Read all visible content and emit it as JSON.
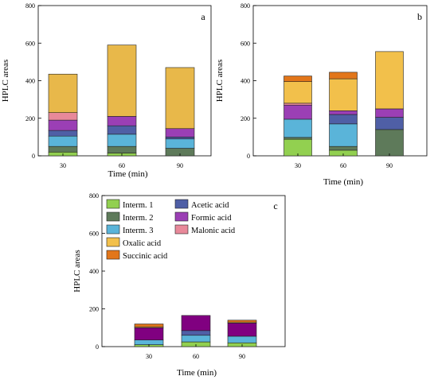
{
  "figure": {
    "legend": [
      {
        "label": "Interm. 1",
        "color": "#92d050"
      },
      {
        "label": "Interm. 2",
        "color": "#5e7a5a"
      },
      {
        "label": "Interm. 3",
        "color": "#5ab4d9"
      },
      {
        "label": "Oxalic acid",
        "color": "#f2c04b"
      },
      {
        "label": "Succinic acid",
        "color": "#e2761a"
      },
      {
        "label": "Acetic acid",
        "color": "#4f5fa6"
      },
      {
        "label": "Formic acid",
        "color": "#9b3fb5"
      },
      {
        "label": "Malonic acid",
        "color": "#e8899a"
      }
    ]
  },
  "chart_data": [
    {
      "type": "bar",
      "stacked": true,
      "panel_label": "a",
      "categories": [
        "30",
        "60",
        "90"
      ],
      "xlabel": "Time (min)",
      "ylabel": "HPLC areas",
      "ylim": [
        0,
        800
      ],
      "yticks": [
        0,
        200,
        400,
        600,
        800
      ],
      "grid": false,
      "series": [
        {
          "name": "Interm. 1",
          "color": "#92d050",
          "values": [
            20,
            15,
            0
          ]
        },
        {
          "name": "Interm. 2",
          "color": "#5e7a5a",
          "values": [
            30,
            35,
            40
          ]
        },
        {
          "name": "Interm. 3",
          "color": "#5ab4d9",
          "values": [
            55,
            65,
            50
          ]
        },
        {
          "name": "Acetic acid",
          "color": "#4f5fa6",
          "values": [
            30,
            45,
            10
          ]
        },
        {
          "name": "Formic acid",
          "color": "#9b3fb5",
          "values": [
            55,
            50,
            45
          ]
        },
        {
          "name": "Malonic acid",
          "color": "#e8899a",
          "values": [
            40,
            0,
            0
          ]
        },
        {
          "name": "Oxalic acid",
          "color": "#e8b84a",
          "values": [
            205,
            380,
            325
          ]
        }
      ]
    },
    {
      "type": "bar",
      "stacked": true,
      "panel_label": "b",
      "categories": [
        "30",
        "60",
        "90"
      ],
      "xlabel": "Time (min)",
      "ylabel": "HPLC areas",
      "ylim": [
        0,
        800
      ],
      "yticks": [
        0,
        200,
        400,
        600,
        800
      ],
      "grid": false,
      "series": [
        {
          "name": "Interm. 1",
          "color": "#92d050",
          "values": [
            88,
            30,
            0
          ]
        },
        {
          "name": "Interm. 2",
          "color": "#5e7a5a",
          "values": [
            10,
            20,
            140
          ]
        },
        {
          "name": "Interm. 3",
          "color": "#5ab4d9",
          "values": [
            97,
            120,
            0
          ]
        },
        {
          "name": "Acetic acid",
          "color": "#4f5fa6",
          "values": [
            0,
            50,
            65
          ]
        },
        {
          "name": "Formic acid",
          "color": "#9b3fb5",
          "values": [
            75,
            20,
            45
          ]
        },
        {
          "name": "Malonic acid",
          "color": "#e8899a",
          "values": [
            10,
            0,
            0
          ]
        },
        {
          "name": "Oxalic acid",
          "color": "#f2c04b",
          "values": [
            115,
            170,
            305
          ]
        },
        {
          "name": "Succinic acid",
          "color": "#e2761a",
          "values": [
            30,
            35,
            0
          ]
        }
      ]
    },
    {
      "type": "bar",
      "stacked": true,
      "panel_label": "c",
      "categories": [
        "30",
        "60",
        "90"
      ],
      "xlabel": "Time (min)",
      "ylabel": "HPLC areas",
      "ylim": [
        0,
        800
      ],
      "yticks": [
        0,
        200,
        400,
        600,
        800
      ],
      "grid": false,
      "series": [
        {
          "name": "Interm. 1",
          "color": "#92d050",
          "values": [
            10,
            25,
            20
          ]
        },
        {
          "name": "Interm. 3",
          "color": "#5ab4d9",
          "values": [
            25,
            35,
            35
          ]
        },
        {
          "name": "Acetic acid",
          "color": "#4f5fa6",
          "values": [
            0,
            25,
            0
          ]
        },
        {
          "name": "Formic acid",
          "color": "#800080",
          "values": [
            65,
            80,
            70
          ]
        },
        {
          "name": "Oxalic acid",
          "color": "#f2c04b",
          "values": [
            5,
            0,
            5
          ]
        },
        {
          "name": "Succinic acid",
          "color": "#e2761a",
          "values": [
            15,
            0,
            10
          ]
        }
      ]
    }
  ]
}
